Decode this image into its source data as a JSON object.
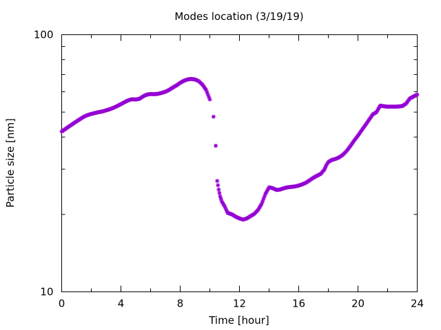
{
  "chart_data": {
    "type": "scatter",
    "title": "Modes location (3/19/19)",
    "xlabel": "Time [hour]",
    "ylabel": "Particle size [nm]",
    "xlim": [
      0,
      24
    ],
    "ylim": [
      10,
      100
    ],
    "yscale": "log",
    "x_ticks": [
      0,
      4,
      8,
      12,
      16,
      20,
      24
    ],
    "y_ticks": [
      10,
      100
    ],
    "grid": false,
    "legend": "none",
    "marker": "asterisk",
    "color": "#9400d3",
    "series": [
      {
        "x": [
          0.0,
          0.25,
          0.5,
          0.75,
          1.0,
          1.25,
          1.5,
          1.75,
          2.0,
          2.25,
          2.5,
          2.75,
          3.0,
          3.25,
          3.5,
          3.75,
          4.0,
          4.25,
          4.5,
          4.75,
          5.0,
          5.25,
          5.5,
          5.75,
          6.0,
          6.25,
          6.5,
          6.75,
          7.0,
          7.25,
          7.5,
          7.75,
          8.0,
          8.25,
          8.5,
          8.75,
          9.0,
          9.25,
          9.5,
          9.75,
          10.0,
          10.25,
          10.4,
          10.5,
          10.6,
          10.7,
          10.8,
          10.9,
          11.0,
          11.2,
          11.5,
          11.75,
          12.0,
          12.25,
          12.5,
          12.75,
          13.0,
          13.25,
          13.5,
          13.75,
          14.0,
          14.25,
          14.5,
          14.75,
          15.0,
          15.25,
          15.5,
          15.75,
          16.0,
          16.25,
          16.5,
          16.75,
          17.0,
          17.25,
          17.5,
          17.75,
          17.85,
          18.0,
          18.25,
          18.5,
          18.75,
          19.0,
          19.25,
          19.5,
          19.75,
          20.0,
          20.25,
          20.5,
          20.75,
          21.0,
          21.25,
          21.5,
          21.75,
          22.0,
          22.25,
          22.5,
          22.75,
          23.0,
          23.25,
          23.5,
          23.75,
          24.0
        ],
        "values": [
          42.0,
          43.0,
          44.0,
          45.0,
          46.0,
          47.0,
          48.0,
          48.7,
          49.2,
          49.6,
          50.0,
          50.3,
          50.8,
          51.3,
          52.0,
          52.8,
          53.7,
          54.7,
          55.6,
          56.1,
          56.0,
          56.3,
          57.6,
          58.5,
          58.8,
          58.7,
          58.9,
          59.4,
          60.0,
          61.0,
          62.3,
          63.5,
          65.0,
          66.2,
          67.0,
          67.3,
          67.0,
          66.0,
          64.0,
          61.0,
          56.0,
          48.0,
          37.0,
          27.0,
          25.0,
          23.5,
          22.5,
          22.0,
          21.5,
          20.3,
          20.0,
          19.6,
          19.3,
          19.1,
          19.3,
          19.7,
          20.1,
          20.8,
          22.0,
          24.0,
          25.5,
          25.3,
          24.9,
          25.0,
          25.3,
          25.5,
          25.6,
          25.7,
          25.9,
          26.2,
          26.6,
          27.2,
          27.8,
          28.3,
          28.8,
          30.0,
          31.0,
          32.0,
          32.6,
          32.9,
          33.4,
          34.2,
          35.4,
          37.0,
          38.8,
          40.5,
          42.5,
          44.5,
          46.7,
          49.0,
          50.0,
          53.0,
          52.7,
          52.5,
          52.5,
          52.5,
          52.6,
          52.8,
          54.0,
          56.5,
          57.5,
          58.5
        ]
      }
    ]
  }
}
